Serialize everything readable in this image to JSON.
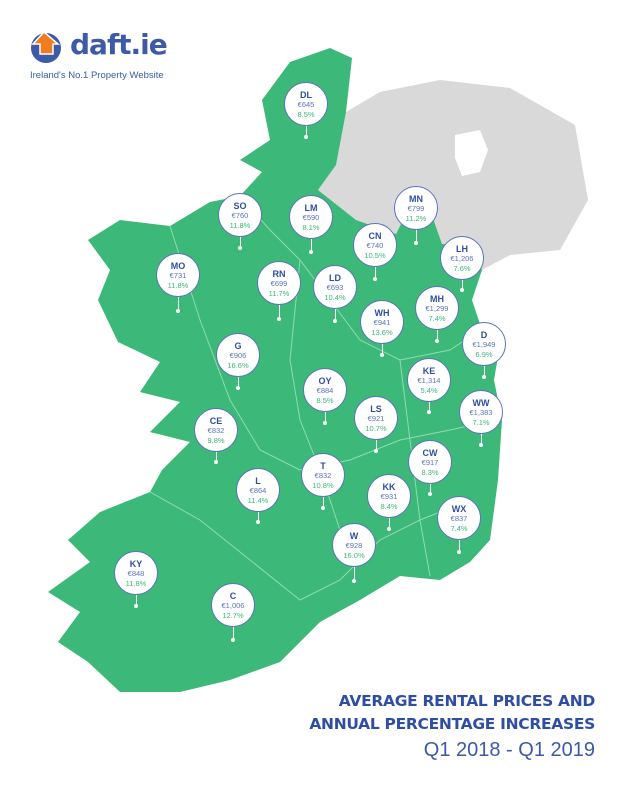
{
  "brand": {
    "name": "daft.ie",
    "tagline": "Ireland's No.1 Property Website",
    "logo_icon": "house-arrow-icon"
  },
  "colors": {
    "roi": "#3cb878",
    "northern_ireland": "#d9d9d9",
    "accent": "#2f4ea3",
    "percent_text": "#3cb878"
  },
  "title": {
    "line1": "AVERAGE RENTAL PRICES AND",
    "line2": "ANNUAL PERCENTAGE INCREASES",
    "period": "Q1 2018 - Q1  2019"
  },
  "counties": [
    {
      "code": "DL",
      "price": "€645",
      "change": "8.5%"
    },
    {
      "code": "SO",
      "price": "€760",
      "change": "11.8%"
    },
    {
      "code": "LM",
      "price": "€590",
      "change": "8.1%"
    },
    {
      "code": "CN",
      "price": "€740",
      "change": "10.5%"
    },
    {
      "code": "MN",
      "price": "€799",
      "change": "11.2%"
    },
    {
      "code": "LH",
      "price": "€1,206",
      "change": "7.6%"
    },
    {
      "code": "MO",
      "price": "€731",
      "change": "11.8%"
    },
    {
      "code": "RN",
      "price": "€699",
      "change": "11.7%"
    },
    {
      "code": "LD",
      "price": "€693",
      "change": "10.4%"
    },
    {
      "code": "WH",
      "price": "€941",
      "change": "13.6%"
    },
    {
      "code": "MH",
      "price": "€1,299",
      "change": "7.4%"
    },
    {
      "code": "D",
      "price": "€1,949",
      "change": "6.9%"
    },
    {
      "code": "G",
      "price": "€906",
      "change": "16.6%"
    },
    {
      "code": "OY",
      "price": "€884",
      "change": "8.5%"
    },
    {
      "code": "KE",
      "price": "€1,314",
      "change": "5.4%"
    },
    {
      "code": "LS",
      "price": "€921",
      "change": "10.7%"
    },
    {
      "code": "WW",
      "price": "€1,383",
      "change": "7.1%"
    },
    {
      "code": "CE",
      "price": "€832",
      "change": "9.8%"
    },
    {
      "code": "CW",
      "price": "€917",
      "change": "8.3%"
    },
    {
      "code": "T",
      "price": "€832",
      "change": "10.8%"
    },
    {
      "code": "L",
      "price": "€864",
      "change": "11.4%"
    },
    {
      "code": "KK",
      "price": "€931",
      "change": "8.4%"
    },
    {
      "code": "WX",
      "price": "€837",
      "change": "7.4%"
    },
    {
      "code": "W",
      "price": "€928",
      "change": "16.0%"
    },
    {
      "code": "KY",
      "price": "€848",
      "change": "11.8%"
    },
    {
      "code": "C",
      "price": "€1,006",
      "change": "12.7%"
    }
  ]
}
